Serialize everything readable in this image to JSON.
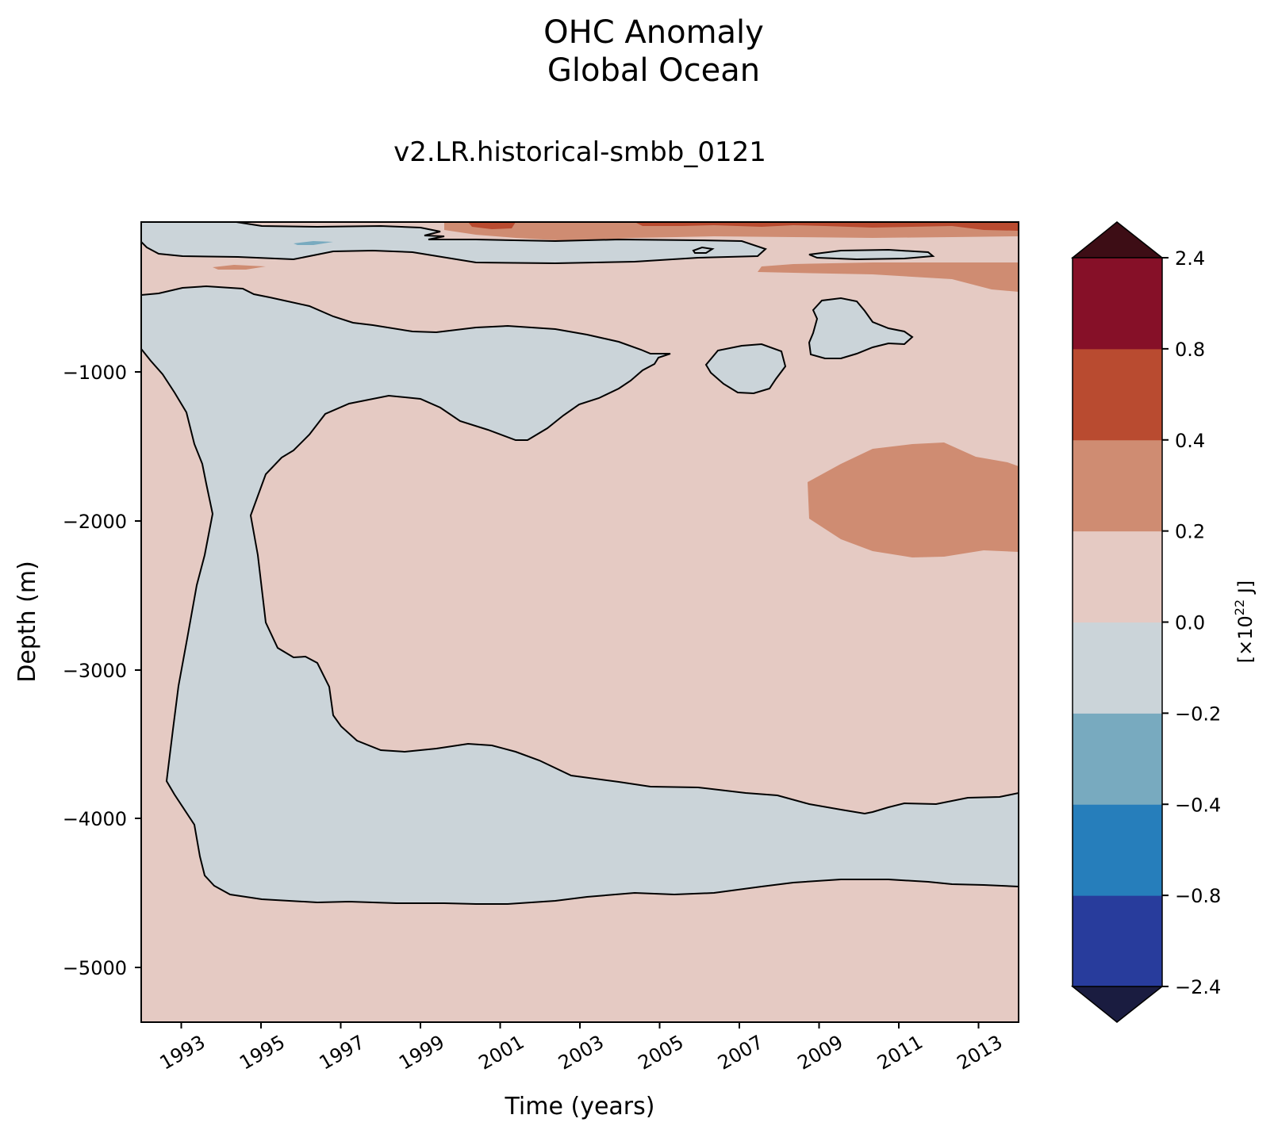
{
  "chart_data": {
    "type": "heatmap",
    "title": "OHC Anomaly",
    "title_line2": "Global Ocean",
    "subtitle": "v2.LR.historical-smbb_0121",
    "xlabel": "Time (years)",
    "ylabel": "Depth (m)",
    "x_ticks": [
      "1993",
      "1995",
      "1997",
      "1999",
      "2001",
      "2003",
      "2005",
      "2007",
      "2009",
      "2011",
      "2013"
    ],
    "y_ticks": [
      "−1000",
      "−2000",
      "−3000",
      "−4000",
      "−5000"
    ],
    "colorbar": {
      "label": "[×10",
      "label_exponent": "22",
      "label_suffix": " J]",
      "tick_labels": [
        "2.4",
        "0.8",
        "0.4",
        "0.2",
        "0.0",
        "−0.2",
        "−0.4",
        "−0.8",
        "−2.4"
      ],
      "levels": [
        -2.4,
        -0.8,
        -0.4,
        -0.2,
        0.0,
        0.2,
        0.4,
        0.8,
        2.4
      ],
      "colors": [
        "#283c9c",
        "#267ebb",
        "#78aabf",
        "#cbd4d9",
        "#e5cac3",
        "#cf8c72",
        "#b94b30",
        "#861028"
      ],
      "extend_low_color": "#1a1c40",
      "extend_high_color": "#3d0d15"
    },
    "background_level": "0.0 to 0.2",
    "grid": false
  }
}
